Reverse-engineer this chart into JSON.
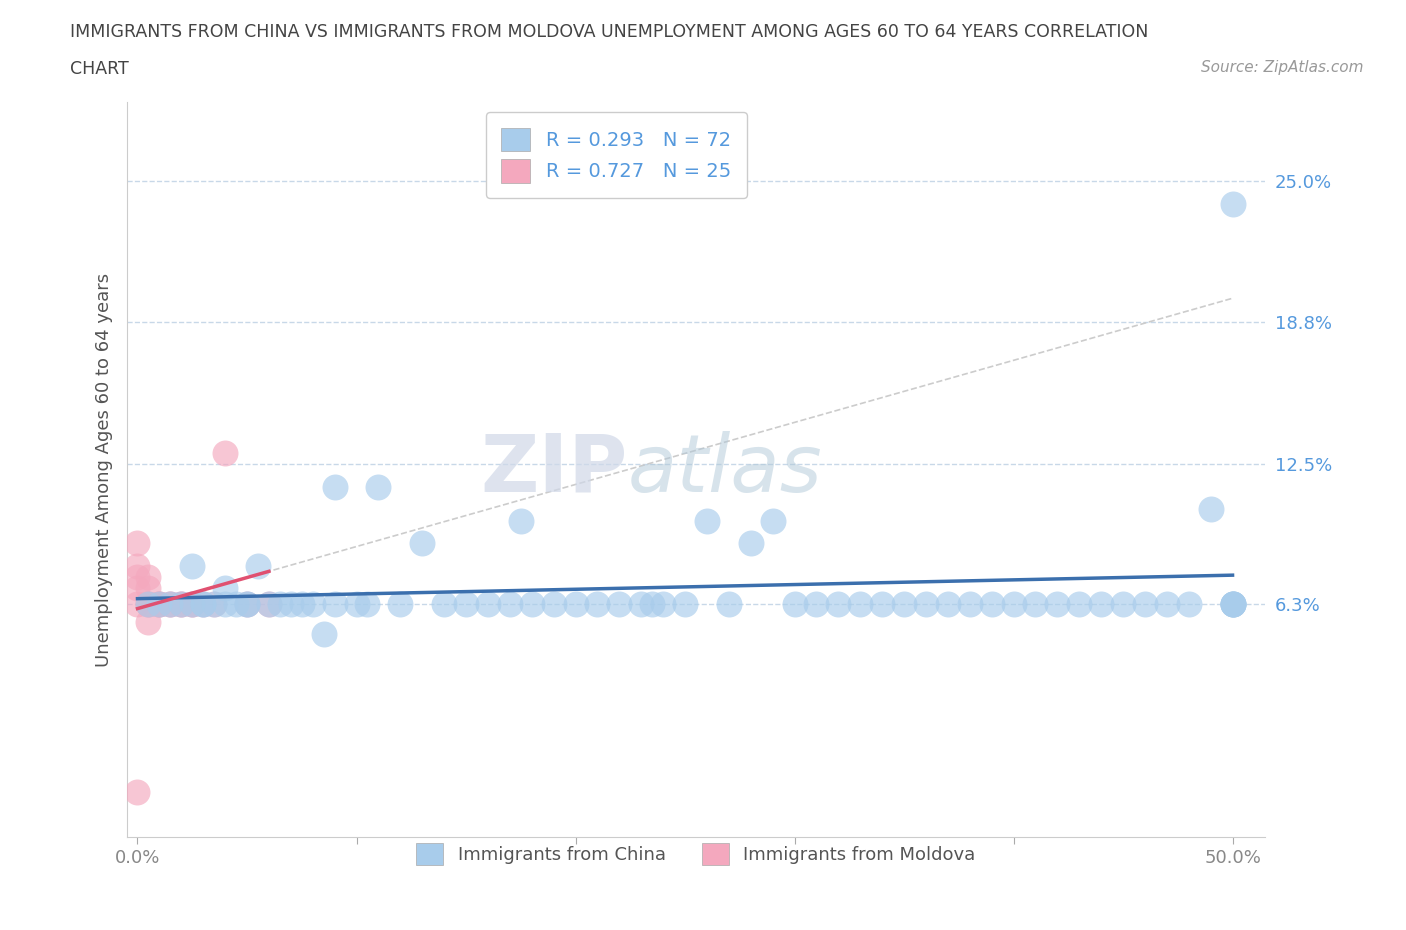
{
  "title_line1": "IMMIGRANTS FROM CHINA VS IMMIGRANTS FROM MOLDOVA UNEMPLOYMENT AMONG AGES 60 TO 64 YEARS CORRELATION",
  "title_line2": "CHART",
  "source": "Source: ZipAtlas.com",
  "ylabel": "Unemployment Among Ages 60 to 64 years",
  "ytick_labels": [
    "6.3%",
    "12.5%",
    "18.8%",
    "25.0%"
  ],
  "xlim": [
    -0.005,
    0.515
  ],
  "ylim": [
    -0.04,
    0.285
  ],
  "yticks": [
    0.063,
    0.125,
    0.188,
    0.25
  ],
  "xticks": [
    0.0,
    0.1,
    0.2,
    0.3,
    0.4,
    0.5
  ],
  "xtick_labels": [
    "0.0%",
    "",
    "",
    "",
    "",
    "50.0%"
  ],
  "china_R": 0.293,
  "china_N": 72,
  "moldova_R": 0.727,
  "moldova_N": 25,
  "china_color": "#a8cceb",
  "moldova_color": "#f4a8be",
  "china_line_color": "#3b6fad",
  "moldova_line_color": "#e05070",
  "moldova_dotted_color": "#cccccc",
  "watermark_zip": "ZIP",
  "watermark_atlas": "atlas",
  "background_color": "#ffffff",
  "grid_color": "#c8d8e8",
  "title_color": "#444444",
  "ytick_color": "#5599dd",
  "xtick_color": "#888888",
  "china_scatter_x": [
    0.005,
    0.01,
    0.015,
    0.02,
    0.025,
    0.025,
    0.03,
    0.03,
    0.035,
    0.04,
    0.04,
    0.045,
    0.05,
    0.05,
    0.055,
    0.06,
    0.065,
    0.07,
    0.075,
    0.08,
    0.085,
    0.09,
    0.09,
    0.1,
    0.105,
    0.11,
    0.12,
    0.13,
    0.14,
    0.15,
    0.16,
    0.17,
    0.175,
    0.18,
    0.19,
    0.2,
    0.21,
    0.22,
    0.23,
    0.235,
    0.24,
    0.25,
    0.26,
    0.27,
    0.28,
    0.29,
    0.3,
    0.31,
    0.32,
    0.33,
    0.34,
    0.35,
    0.36,
    0.37,
    0.38,
    0.39,
    0.4,
    0.41,
    0.42,
    0.43,
    0.44,
    0.45,
    0.46,
    0.47,
    0.48,
    0.49,
    0.5,
    0.5,
    0.5,
    0.5,
    0.5,
    0.5
  ],
  "china_scatter_y": [
    0.063,
    0.063,
    0.063,
    0.063,
    0.063,
    0.08,
    0.063,
    0.063,
    0.063,
    0.063,
    0.07,
    0.063,
    0.063,
    0.063,
    0.08,
    0.063,
    0.063,
    0.063,
    0.063,
    0.063,
    0.05,
    0.115,
    0.063,
    0.063,
    0.063,
    0.115,
    0.063,
    0.09,
    0.063,
    0.063,
    0.063,
    0.063,
    0.1,
    0.063,
    0.063,
    0.063,
    0.063,
    0.063,
    0.063,
    0.063,
    0.063,
    0.063,
    0.1,
    0.063,
    0.09,
    0.1,
    0.063,
    0.063,
    0.063,
    0.063,
    0.063,
    0.063,
    0.063,
    0.063,
    0.063,
    0.063,
    0.063,
    0.063,
    0.063,
    0.063,
    0.063,
    0.063,
    0.063,
    0.063,
    0.063,
    0.105,
    0.063,
    0.063,
    0.063,
    0.063,
    0.24,
    0.063
  ],
  "moldova_scatter_x": [
    0.0,
    0.0,
    0.0,
    0.0,
    0.0,
    0.0,
    0.005,
    0.005,
    0.005,
    0.005,
    0.005,
    0.01,
    0.01,
    0.01,
    0.015,
    0.015,
    0.02,
    0.02,
    0.025,
    0.025,
    0.03,
    0.035,
    0.04,
    0.05,
    0.06
  ],
  "moldova_scatter_y": [
    0.063,
    0.07,
    0.075,
    0.08,
    0.09,
    -0.02,
    0.063,
    0.063,
    0.07,
    0.075,
    0.055,
    0.063,
    0.063,
    0.063,
    0.063,
    0.063,
    0.063,
    0.063,
    0.063,
    0.063,
    0.063,
    0.063,
    0.13,
    0.063,
    0.063
  ]
}
